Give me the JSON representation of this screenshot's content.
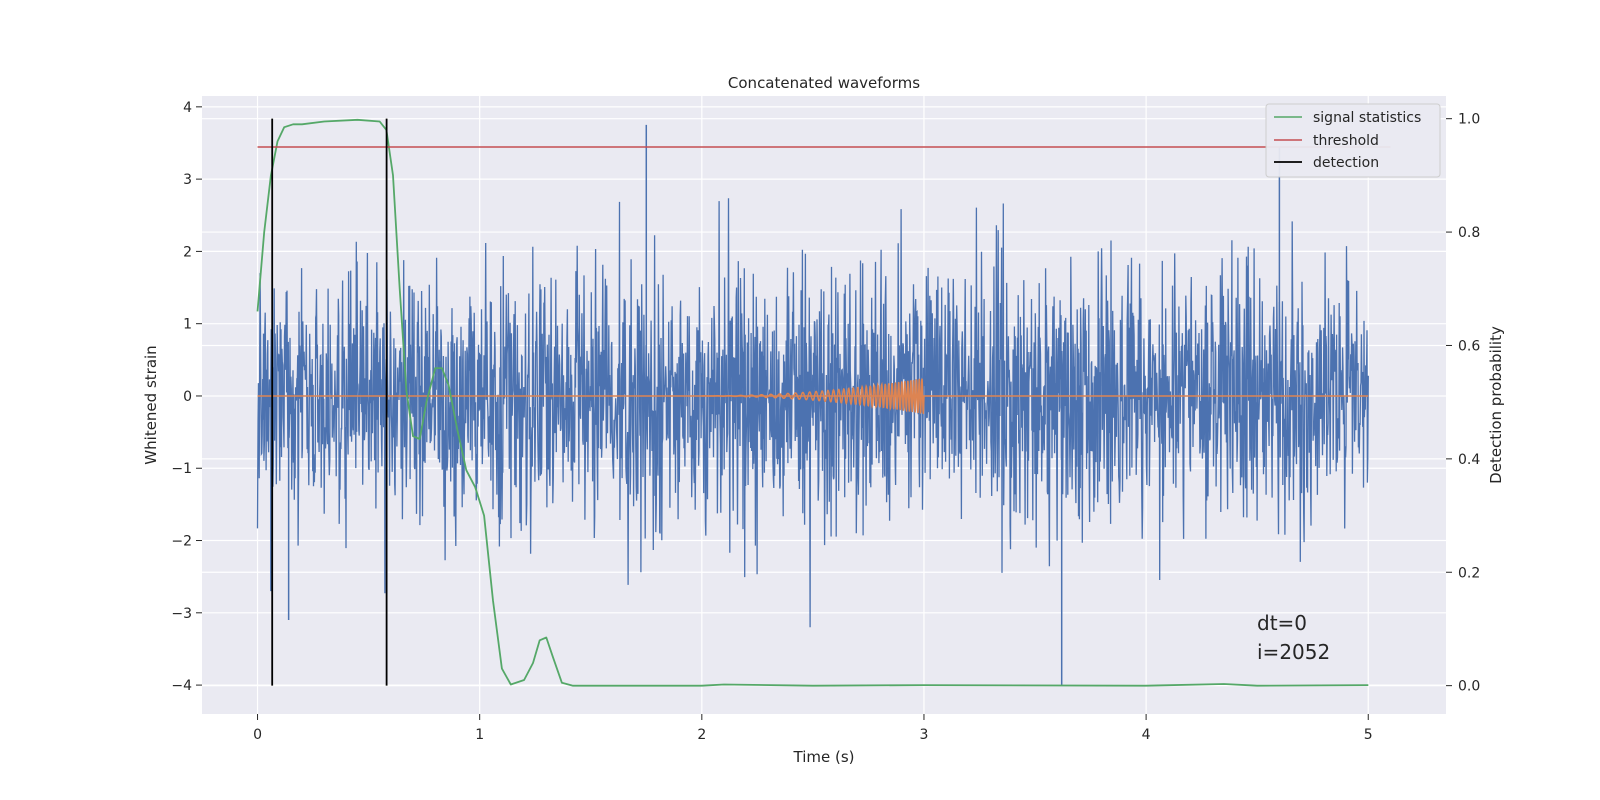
{
  "chart_data": {
    "type": "line",
    "title": "Concatenated waveforms",
    "xlabel": "Time (s)",
    "ylabel_left": "Whitened strain",
    "ylabel_right": "Detection probability",
    "xlim": [
      -0.25,
      5.35
    ],
    "ylim_left": [
      -4.4,
      4.15
    ],
    "ylim_right": [
      -0.05,
      1.04
    ],
    "xticks": [
      0,
      1,
      2,
      3,
      4,
      5
    ],
    "xtick_labels": [
      "0",
      "1",
      "2",
      "3",
      "4",
      "5"
    ],
    "yticks_left": [
      -4,
      -3,
      -2,
      -1,
      0,
      1,
      2,
      3,
      4
    ],
    "ytick_labels_left": [
      "−4",
      "−3",
      "−2",
      "−1",
      "0",
      "1",
      "2",
      "3",
      "4"
    ],
    "yticks_right": [
      0.0,
      0.2,
      0.4,
      0.6,
      0.8,
      1.0
    ],
    "ytick_labels_right": [
      "0.0",
      "0.2",
      "0.4",
      "0.6",
      "0.8",
      "1.0"
    ],
    "grid": true,
    "legend_placement": "top-right",
    "colors": {
      "strain": "#4c72b0",
      "waveform": "#dd8452",
      "signal_statistics": "#55a868",
      "threshold": "#c44e52",
      "detection": "#000000",
      "background": "#eaeaf2",
      "grid": "#ffffff"
    },
    "series": [
      {
        "name": "signal statistics",
        "axis": "right",
        "x": [
          0.0,
          0.03,
          0.06,
          0.09,
          0.12,
          0.16,
          0.2,
          0.3,
          0.45,
          0.55,
          0.58,
          0.61,
          0.64,
          0.67,
          0.7,
          0.73,
          0.76,
          0.8,
          0.83,
          0.86,
          0.9,
          0.94,
          0.98,
          1.02,
          1.06,
          1.1,
          1.14,
          1.2,
          1.24,
          1.27,
          1.3,
          1.33,
          1.37,
          1.42,
          2.0,
          2.1,
          2.5,
          3.0,
          4.0,
          4.35,
          4.5,
          5.0
        ],
        "y": [
          0.66,
          0.8,
          0.9,
          0.96,
          0.985,
          0.99,
          0.99,
          0.995,
          0.998,
          0.995,
          0.98,
          0.9,
          0.7,
          0.52,
          0.44,
          0.435,
          0.5,
          0.56,
          0.56,
          0.53,
          0.45,
          0.38,
          0.35,
          0.3,
          0.15,
          0.03,
          0.002,
          0.01,
          0.04,
          0.08,
          0.085,
          0.05,
          0.005,
          0.0,
          0.0,
          0.002,
          0.0,
          0.001,
          0.0,
          0.003,
          0.0,
          0.001
        ]
      },
      {
        "name": "threshold",
        "axis": "right",
        "x": [
          0.0,
          5.1
        ],
        "y": [
          0.95,
          0.95
        ]
      },
      {
        "name": "detection",
        "axis": "right",
        "x": [
          0.066,
          0.581
        ],
        "y": [
          1.0,
          1.0
        ]
      }
    ],
    "strain_noise": {
      "axis": "left",
      "x_range": [
        0.0,
        5.0
      ],
      "typical_range": [
        -2.5,
        2.5
      ],
      "notable_spikes": [
        {
          "x": 1.75,
          "y": 3.75
        },
        {
          "x": 3.62,
          "y": -4.0
        },
        {
          "x": 4.6,
          "y": 3.45
        },
        {
          "x": 0.06,
          "y": -2.7
        },
        {
          "x": 0.14,
          "y": -3.1
        }
      ]
    },
    "injected_waveform": {
      "axis": "left",
      "x_range": [
        2.0,
        3.0
      ],
      "peak_amplitude": 0.25,
      "baseline": 0.0,
      "baseline_x_range": [
        0.0,
        5.0
      ]
    },
    "annotations": [
      "dt=0",
      "i=2052"
    ]
  }
}
